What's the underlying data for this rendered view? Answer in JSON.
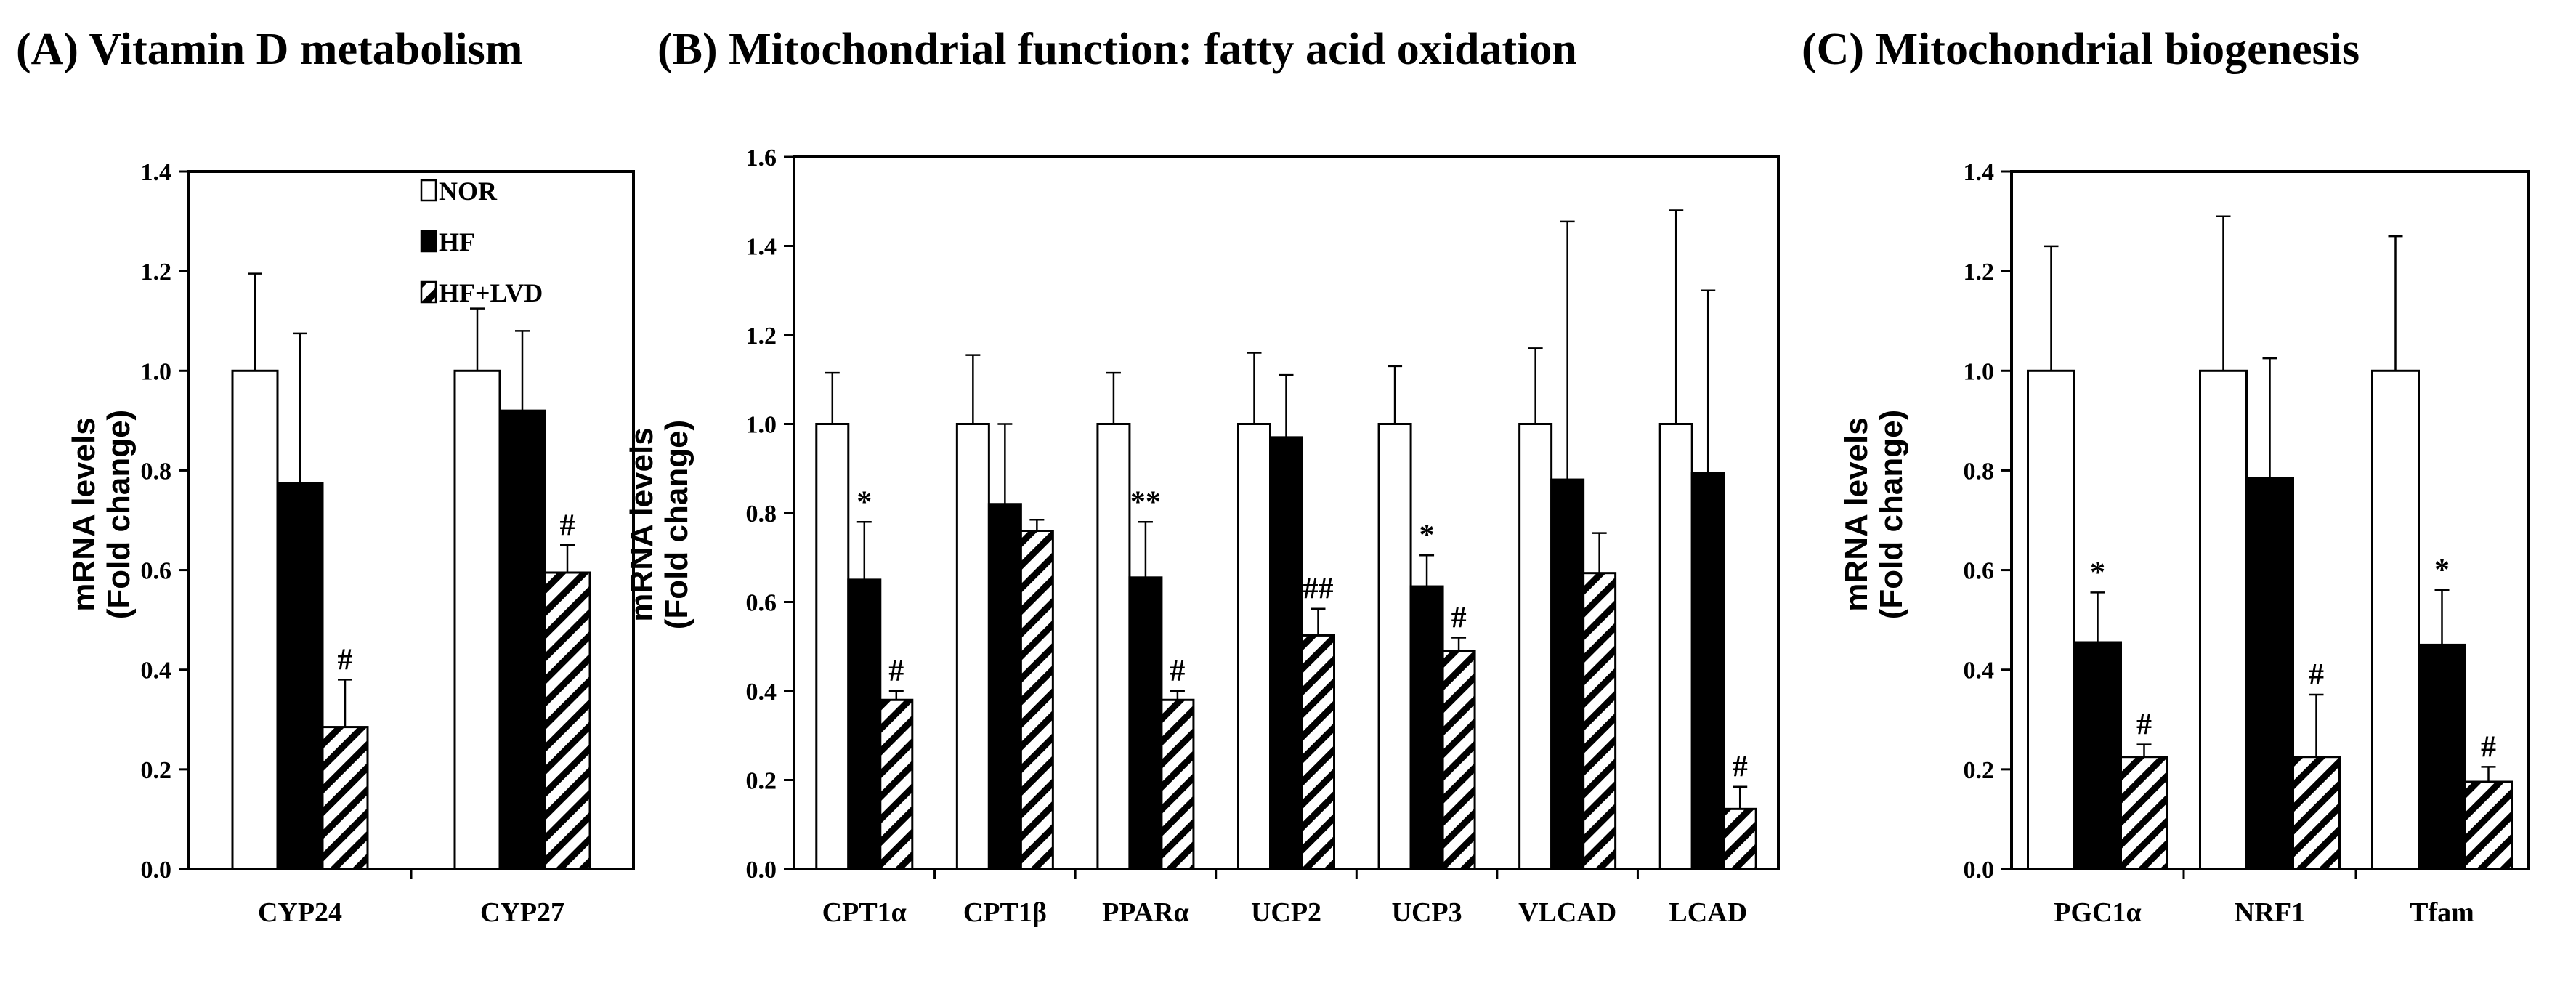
{
  "legend": [
    "NOR",
    "HF",
    "HF+LVD"
  ],
  "chart_data": [
    {
      "id": "A",
      "type": "bar",
      "title": "(A) Vitamin D metabolism",
      "ylabel_line1": "mRNA levels",
      "ylabel_line2": "(Fold change)",
      "ylim": [
        0,
        1.4
      ],
      "yticks": [
        "0.0",
        "0.2",
        "0.4",
        "0.6",
        "0.8",
        "1.0",
        "1.2",
        "1.4"
      ],
      "tick_step": 0.2,
      "categories": [
        "CYP24",
        "CYP27"
      ],
      "series": [
        {
          "name": "NOR",
          "values": [
            1.0,
            1.0
          ],
          "errors": [
            0.195,
            0.125
          ],
          "marks": [
            "",
            ""
          ]
        },
        {
          "name": "HF",
          "values": [
            0.775,
            0.92
          ],
          "errors": [
            0.3,
            0.16
          ],
          "marks": [
            "",
            ""
          ]
        },
        {
          "name": "HF+LVD",
          "values": [
            0.285,
            0.595
          ],
          "errors": [
            0.095,
            0.055
          ],
          "marks": [
            "#",
            "#"
          ]
        }
      ]
    },
    {
      "id": "B",
      "type": "bar",
      "title": "(B) Mitochondrial function: fatty acid oxidation",
      "ylabel_line1": "mRNA levels",
      "ylabel_line2": "(Fold change)",
      "ylim": [
        0,
        1.6
      ],
      "yticks": [
        "0.0",
        "0.2",
        "0.4",
        "0.6",
        "0.8",
        "1.0",
        "1.2",
        "1.4",
        "1.6"
      ],
      "tick_step": 0.2,
      "categories": [
        "CPT1α",
        "CPT1β",
        "PPARα",
        "UCP2",
        "UCP3",
        "VLCAD",
        "LCAD"
      ],
      "series": [
        {
          "name": "NOR",
          "values": [
            1.0,
            1.0,
            1.0,
            1.0,
            1.0,
            1.0,
            1.0
          ],
          "errors": [
            0.115,
            0.155,
            0.115,
            0.16,
            0.13,
            0.17,
            0.48
          ],
          "marks": [
            "",
            "",
            "",
            "",
            "",
            "",
            ""
          ]
        },
        {
          "name": "HF",
          "values": [
            0.65,
            0.82,
            0.655,
            0.97,
            0.635,
            0.875,
            0.89
          ],
          "errors": [
            0.13,
            0.18,
            0.125,
            0.14,
            0.07,
            0.58,
            0.41
          ],
          "marks": [
            "*",
            "",
            "**",
            "",
            "*",
            "",
            ""
          ]
        },
        {
          "name": "HF+LVD",
          "values": [
            0.38,
            0.76,
            0.38,
            0.525,
            0.49,
            0.665,
            0.135
          ],
          "errors": [
            0.02,
            0.025,
            0.02,
            0.06,
            0.03,
            0.09,
            0.05
          ],
          "marks": [
            "#",
            "",
            "#",
            "##",
            "#",
            "",
            "#"
          ]
        }
      ]
    },
    {
      "id": "C",
      "type": "bar",
      "title": "(C) Mitochondrial biogenesis",
      "ylabel_line1": "mRNA levels",
      "ylabel_line2": "(Fold change)",
      "ylim": [
        0,
        1.4
      ],
      "yticks": [
        "0.0",
        "0.2",
        "0.4",
        "0.6",
        "0.8",
        "1.0",
        "1.2",
        "1.4"
      ],
      "tick_step": 0.2,
      "categories": [
        "PGC1α",
        "NRF1",
        "Tfam"
      ],
      "series": [
        {
          "name": "NOR",
          "values": [
            1.0,
            1.0,
            1.0
          ],
          "errors": [
            0.25,
            0.31,
            0.27
          ],
          "marks": [
            "",
            "",
            ""
          ]
        },
        {
          "name": "HF",
          "values": [
            0.455,
            0.785,
            0.45
          ],
          "errors": [
            0.1,
            0.24,
            0.11
          ],
          "marks": [
            "*",
            "",
            "*"
          ]
        },
        {
          "name": "HF+LVD",
          "values": [
            0.225,
            0.225,
            0.175
          ],
          "errors": [
            0.025,
            0.125,
            0.03
          ],
          "marks": [
            "#",
            "#",
            "#"
          ]
        }
      ]
    }
  ]
}
